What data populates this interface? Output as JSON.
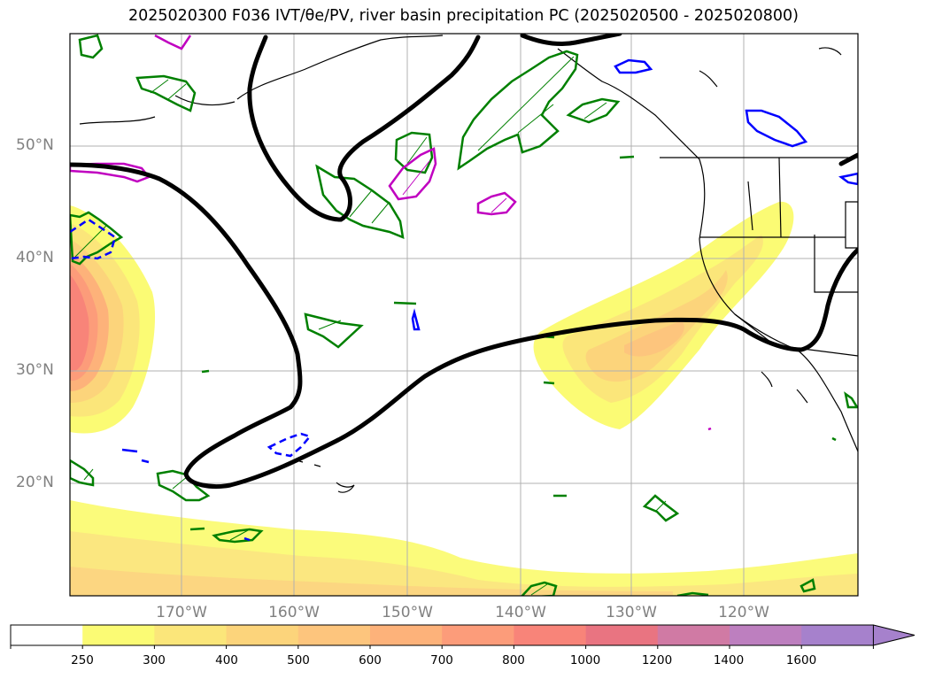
{
  "title": "2025020300 F036 IVT/θe/PV, river basin precipitation PC (2025020500 - 2025020800)",
  "map": {
    "projection": "Mercator",
    "lon_range_deg": [
      -180,
      -110
    ],
    "lat_range_deg": [
      10,
      60
    ],
    "lat_labels": [
      "50°N",
      "40°N",
      "30°N",
      "20°N"
    ],
    "lon_labels": [
      "170°W",
      "160°W",
      "150°W",
      "140°W",
      "130°W",
      "120°W"
    ],
    "gridlines": true,
    "features": [
      "IVT shading",
      "PV contour (black)",
      "theta-e contours (green)",
      "precipitation contours (magenta)",
      "blue dashed contours"
    ]
  },
  "colorbar": {
    "extend": "max",
    "levels": [
      "250",
      "300",
      "400",
      "500",
      "600",
      "700",
      "800",
      "1000",
      "1200",
      "1400",
      "1600"
    ],
    "colors": [
      "#ffffff",
      "#fbfb74",
      "#fbe67a",
      "#fcd47b",
      "#fdc57d",
      "#fdb27a",
      "#fc9c7a",
      "#f88479",
      "#e97481",
      "#d07aa4",
      "#bd7fbf",
      "#a681cc"
    ]
  },
  "colors": {
    "pv_contour": "#000000",
    "theta_e_contour": "#008000",
    "precip_contour": "#c000c0",
    "blue_contour": "#0000ff",
    "axis_label": "#808080",
    "grid": "#b0b0b0"
  }
}
